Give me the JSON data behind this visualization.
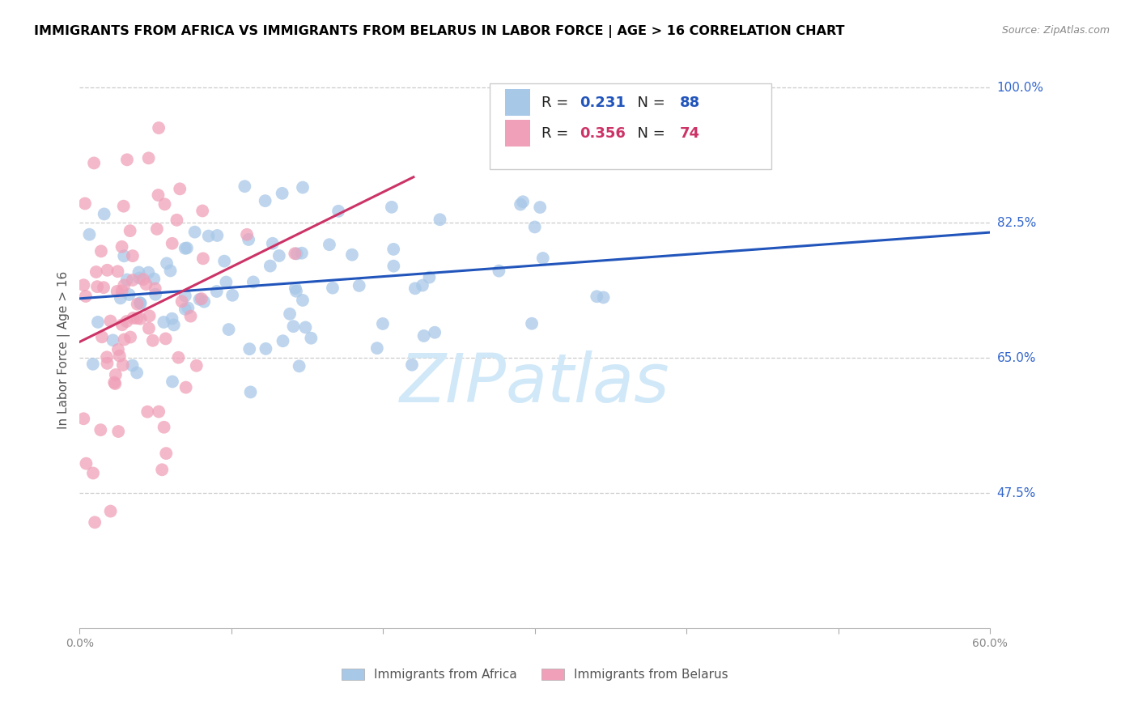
{
  "title": "IMMIGRANTS FROM AFRICA VS IMMIGRANTS FROM BELARUS IN LABOR FORCE | AGE > 16 CORRELATION CHART",
  "source": "Source: ZipAtlas.com",
  "ylabel": "In Labor Force | Age > 16",
  "xlim": [
    0.0,
    0.6
  ],
  "ylim": [
    0.3,
    1.02
  ],
  "grid_yticks": [
    0.475,
    0.65,
    0.825,
    1.0
  ],
  "right_ytick_labels": {
    "0.475": "47.5%",
    "0.65": "65.0%",
    "0.825": "82.5%",
    "1.00": "100.0%"
  },
  "xtick_positions": [
    0.0,
    0.1,
    0.2,
    0.3,
    0.4,
    0.5,
    0.6
  ],
  "xtick_labels": [
    "0.0%",
    "",
    "",
    "",
    "",
    "",
    "60.0%"
  ],
  "R_africa": 0.231,
  "N_africa": 88,
  "R_belarus": 0.356,
  "N_belarus": 74,
  "color_africa": "#a8c8e8",
  "color_belarus": "#f0a0b8",
  "line_color_africa": "#2255bb",
  "line_color_belarus": "#cc3366",
  "watermark": "ZIPatlas",
  "watermark_color": "#d0e8f8",
  "legend_label_africa": "Immigrants from Africa",
  "legend_label_belarus": "Immigrants from Belarus"
}
